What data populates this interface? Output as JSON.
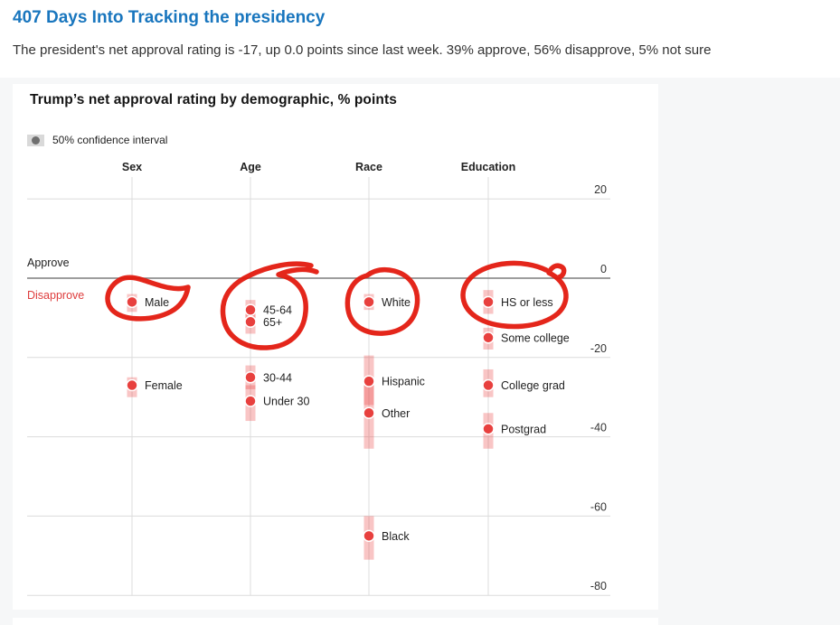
{
  "page": {
    "title": "407 Days Into Tracking the presidency",
    "subtitle": "The president's net approval rating is -17, up 0.0 points since last week. 39% approve, 56% disapprove, 5% not sure"
  },
  "chart_data": {
    "type": "scatter",
    "title": "Trump’s net approval rating by demographic, % points",
    "legend": "50% confidence interval",
    "ylabel": "% points",
    "ylim": [
      -80,
      20
    ],
    "yticks": [
      20,
      0,
      -20,
      -40,
      -60,
      -80
    ],
    "zero_labels": {
      "above": "Approve",
      "below": "Disapprove"
    },
    "legend_position": "top-left",
    "grid": true,
    "groups": [
      {
        "name": "Sex",
        "points": [
          {
            "label": "Male",
            "value": -6,
            "ci": [
              -4,
              -8.5
            ],
            "circled": true
          },
          {
            "label": "Female",
            "value": -27,
            "ci": [
              -25,
              -30
            ],
            "circled": false
          }
        ]
      },
      {
        "name": "Age",
        "points": [
          {
            "label": "45-64",
            "value": -8,
            "ci": [
              -5.5,
              -10.5
            ],
            "circled": true
          },
          {
            "label": "65+",
            "value": -11,
            "ci": [
              -8.5,
              -14
            ],
            "circled": true
          },
          {
            "label": "30-44",
            "value": -25,
            "ci": [
              -22,
              -28
            ],
            "circled": false
          },
          {
            "label": "Under 30",
            "value": -31,
            "ci": [
              -27,
              -36
            ],
            "circled": false
          }
        ]
      },
      {
        "name": "Race",
        "points": [
          {
            "label": "White",
            "value": -6,
            "ci": [
              -4,
              -8
            ],
            "circled": true
          },
          {
            "label": "Hispanic",
            "value": -26,
            "ci": [
              -19.5,
              -32
            ],
            "circled": false
          },
          {
            "label": "Other",
            "value": -34,
            "ci": [
              -27,
              -43
            ],
            "circled": false
          },
          {
            "label": "Black",
            "value": -65,
            "ci": [
              -60,
              -71
            ],
            "circled": false
          }
        ]
      },
      {
        "name": "Education",
        "points": [
          {
            "label": "HS or less",
            "value": -6,
            "ci": [
              -3,
              -9
            ],
            "circled": true
          },
          {
            "label": "Some college",
            "value": -15,
            "ci": [
              -12.5,
              -18
            ],
            "circled": false
          },
          {
            "label": "College grad",
            "value": -27,
            "ci": [
              -23,
              -30
            ],
            "circled": false
          },
          {
            "label": "Postgrad",
            "value": -38,
            "ci": [
              -34,
              -43
            ],
            "circled": false
          }
        ]
      }
    ],
    "annotations": [
      {
        "target": "Male"
      },
      {
        "target": "45-64 and 65+"
      },
      {
        "target": "White"
      },
      {
        "target": "HS or less"
      }
    ],
    "colors": {
      "dot": "#e8403e",
      "ci_band": "rgba(234,64,62,0.30)",
      "annotation": "#e2160a",
      "gridline": "#dcdcdc",
      "zero_line": "#7d7d7d",
      "disapprove": "#de3d3d",
      "title_blue": "#1976be"
    }
  }
}
